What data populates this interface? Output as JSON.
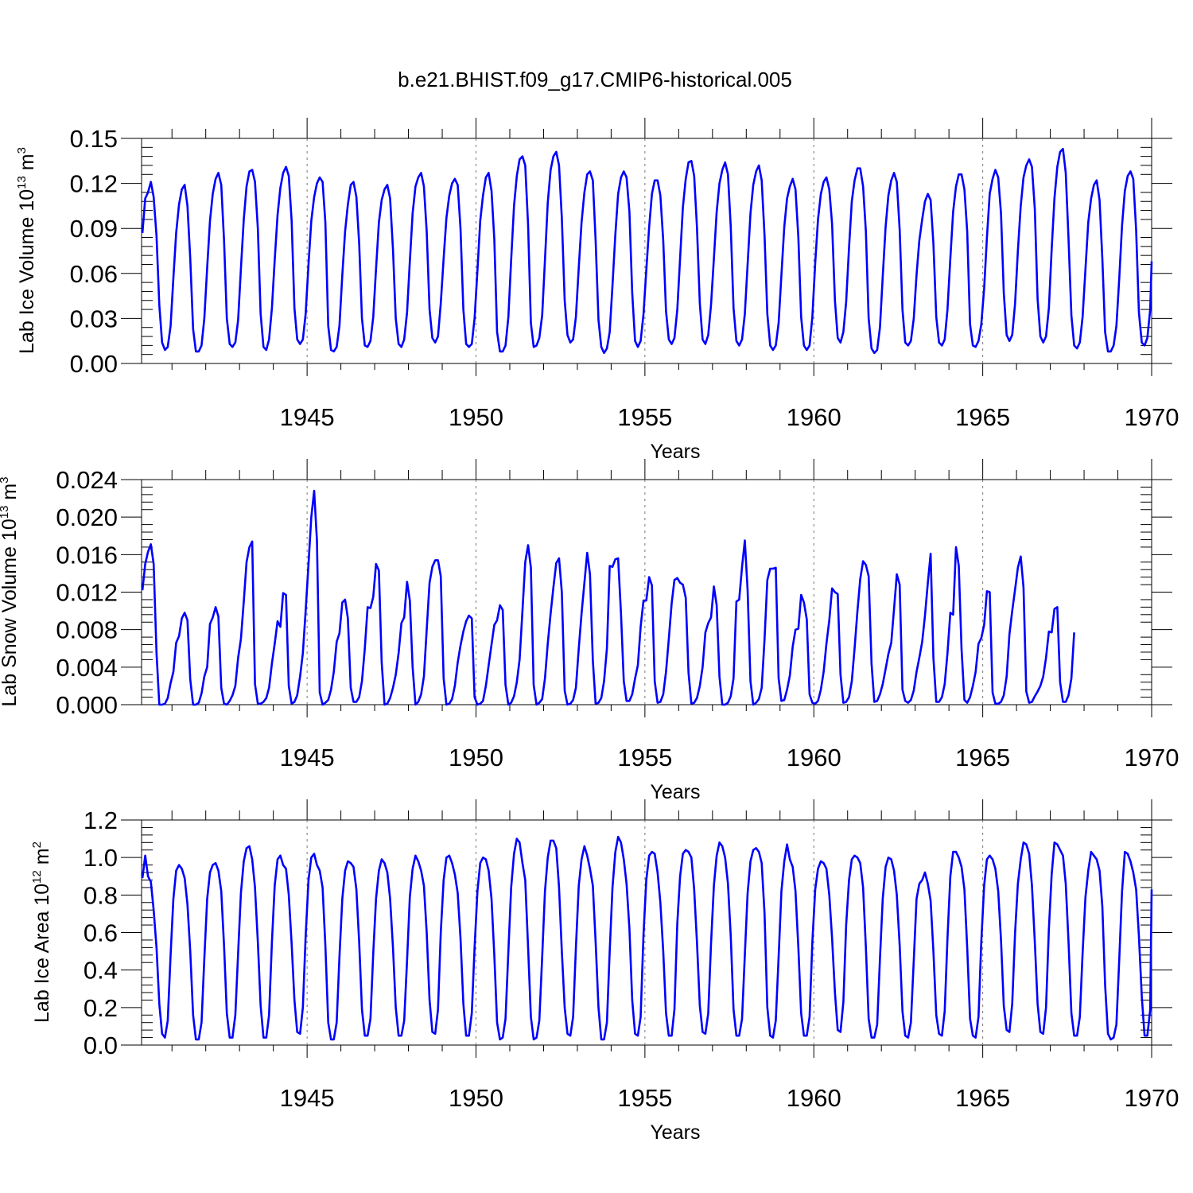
{
  "title": "b.e21.BHIST.f09_g17.CMIP6-historical.005",
  "chart_data": [
    {
      "type": "line",
      "id": "ice-volume",
      "title": "b.e21.BHIST.f09_g17.CMIP6-historical.005",
      "ylabel_main": "Lab Ice Volume 10",
      "ylabel_exp": "13",
      "ylabel_unit": " m",
      "ylabel_unit_exp": "3",
      "xlabel": "Years",
      "xlim": [
        1940.1,
        1970
      ],
      "ylim": [
        0,
        0.15
      ],
      "yticks": [
        0.0,
        0.03,
        0.06,
        0.09,
        0.12,
        0.15
      ],
      "ytick_labels": [
        "0.00",
        "0.03",
        "0.06",
        "0.09",
        "0.12",
        "0.15"
      ],
      "xticks": [
        1945,
        1950,
        1955,
        1960,
        1965,
        1970
      ],
      "xtick_labels": [
        "1945",
        "1950",
        "1955",
        "1960",
        "1965",
        "1970"
      ],
      "line_color": "#0000ff",
      "grid": "dashed vertical at 1945, 1950, 1955, 1960, 1965",
      "x_start": 1940.125,
      "x_step": 0.08333,
      "values": [
        0.087,
        0.11,
        0.114,
        0.121,
        0.111,
        0.085,
        0.039,
        0.014,
        0.009,
        0.011,
        0.025,
        0.057,
        0.087,
        0.106,
        0.116,
        0.119,
        0.105,
        0.07,
        0.023,
        0.008,
        0.008,
        0.012,
        0.03,
        0.064,
        0.095,
        0.113,
        0.123,
        0.127,
        0.119,
        0.082,
        0.03,
        0.013,
        0.011,
        0.014,
        0.029,
        0.063,
        0.096,
        0.118,
        0.128,
        0.129,
        0.121,
        0.09,
        0.033,
        0.011,
        0.009,
        0.016,
        0.037,
        0.069,
        0.099,
        0.117,
        0.127,
        0.131,
        0.125,
        0.095,
        0.037,
        0.016,
        0.013,
        0.016,
        0.033,
        0.066,
        0.095,
        0.111,
        0.12,
        0.124,
        0.121,
        0.094,
        0.025,
        0.009,
        0.008,
        0.011,
        0.025,
        0.059,
        0.088,
        0.106,
        0.119,
        0.121,
        0.111,
        0.08,
        0.03,
        0.012,
        0.011,
        0.015,
        0.031,
        0.063,
        0.094,
        0.109,
        0.116,
        0.119,
        0.11,
        0.076,
        0.03,
        0.013,
        0.011,
        0.016,
        0.034,
        0.068,
        0.1,
        0.118,
        0.124,
        0.127,
        0.118,
        0.088,
        0.036,
        0.017,
        0.014,
        0.018,
        0.04,
        0.07,
        0.097,
        0.112,
        0.12,
        0.123,
        0.119,
        0.09,
        0.036,
        0.013,
        0.011,
        0.013,
        0.03,
        0.062,
        0.095,
        0.112,
        0.124,
        0.127,
        0.115,
        0.083,
        0.021,
        0.008,
        0.008,
        0.012,
        0.031,
        0.069,
        0.105,
        0.125,
        0.136,
        0.138,
        0.132,
        0.092,
        0.027,
        0.011,
        0.012,
        0.017,
        0.032,
        0.069,
        0.107,
        0.129,
        0.138,
        0.141,
        0.132,
        0.097,
        0.042,
        0.019,
        0.014,
        0.016,
        0.031,
        0.064,
        0.094,
        0.114,
        0.126,
        0.128,
        0.122,
        0.082,
        0.029,
        0.011,
        0.007,
        0.01,
        0.021,
        0.052,
        0.086,
        0.113,
        0.124,
        0.128,
        0.124,
        0.101,
        0.047,
        0.015,
        0.011,
        0.015,
        0.033,
        0.062,
        0.091,
        0.113,
        0.122,
        0.122,
        0.112,
        0.082,
        0.035,
        0.016,
        0.013,
        0.017,
        0.036,
        0.07,
        0.104,
        0.123,
        0.134,
        0.135,
        0.125,
        0.091,
        0.04,
        0.016,
        0.013,
        0.019,
        0.039,
        0.07,
        0.101,
        0.12,
        0.129,
        0.134,
        0.126,
        0.091,
        0.037,
        0.015,
        0.012,
        0.016,
        0.033,
        0.066,
        0.1,
        0.119,
        0.128,
        0.132,
        0.122,
        0.085,
        0.033,
        0.012,
        0.009,
        0.012,
        0.027,
        0.059,
        0.091,
        0.11,
        0.118,
        0.123,
        0.116,
        0.084,
        0.031,
        0.012,
        0.009,
        0.012,
        0.031,
        0.067,
        0.096,
        0.113,
        0.121,
        0.124,
        0.116,
        0.093,
        0.042,
        0.017,
        0.014,
        0.021,
        0.041,
        0.077,
        0.108,
        0.122,
        0.13,
        0.13,
        0.118,
        0.088,
        0.03,
        0.01,
        0.007,
        0.009,
        0.024,
        0.058,
        0.091,
        0.112,
        0.122,
        0.127,
        0.121,
        0.089,
        0.036,
        0.014,
        0.012,
        0.015,
        0.03,
        0.059,
        0.082,
        0.096,
        0.108,
        0.113,
        0.109,
        0.08,
        0.031,
        0.014,
        0.012,
        0.016,
        0.036,
        0.07,
        0.101,
        0.118,
        0.126,
        0.126,
        0.116,
        0.088,
        0.026,
        0.012,
        0.011,
        0.015,
        0.026,
        0.05,
        0.084,
        0.113,
        0.123,
        0.129,
        0.124,
        0.1,
        0.047,
        0.019,
        0.015,
        0.019,
        0.04,
        0.075,
        0.105,
        0.124,
        0.132,
        0.136,
        0.131,
        0.103,
        0.043,
        0.018,
        0.014,
        0.018,
        0.037,
        0.076,
        0.11,
        0.131,
        0.141,
        0.143,
        0.127,
        0.083,
        0.032,
        0.012,
        0.01,
        0.014,
        0.031,
        0.063,
        0.094,
        0.11,
        0.119,
        0.122,
        0.109,
        0.07,
        0.021,
        0.008,
        0.008,
        0.012,
        0.025,
        0.056,
        0.092,
        0.115,
        0.125,
        0.128,
        0.123,
        0.089,
        0.034,
        0.014,
        0.012,
        0.017,
        0.036,
        0.068
      ]
    },
    {
      "type": "line",
      "id": "snow-volume",
      "ylabel_main": "Lab Snow Volume 10",
      "ylabel_exp": "13",
      "ylabel_unit": " m",
      "ylabel_unit_exp": "3",
      "xlabel": "Years",
      "xlim": [
        1940.1,
        1970
      ],
      "ylim": [
        0,
        0.024
      ],
      "yticks": [
        0.0,
        0.004,
        0.008,
        0.012,
        0.016,
        0.02,
        0.024
      ],
      "ytick_labels": [
        "0.000",
        "0.004",
        "0.008",
        "0.012",
        "0.016",
        "0.020",
        "0.024"
      ],
      "xticks": [
        1945,
        1950,
        1955,
        1960,
        1965,
        1970
      ],
      "xtick_labels": [
        "1945",
        "1950",
        "1955",
        "1960",
        "1965",
        "1970"
      ],
      "line_color": "#0000ff",
      "grid": "dashed vertical at 1945, 1950, 1955, 1960, 1965",
      "x_start": 1940.125,
      "x_step": 0.08333,
      "values": [
        0.0122,
        0.015,
        0.0163,
        0.0171,
        0.015,
        0.0055,
        0.0,
        0.0,
        0.0001,
        0.0007,
        0.0023,
        0.0035,
        0.0066,
        0.0073,
        0.0092,
        0.0098,
        0.009,
        0.0027,
        0.0,
        0.0,
        0.0002,
        0.0012,
        0.003,
        0.004,
        0.0086,
        0.0093,
        0.0104,
        0.0094,
        0.0018,
        0.0001,
        0.0,
        0.0004,
        0.001,
        0.002,
        0.005,
        0.007,
        0.011,
        0.0152,
        0.0168,
        0.0174,
        0.0022,
        0.0001,
        0.0001,
        0.0003,
        0.0007,
        0.0018,
        0.0044,
        0.0065,
        0.0089,
        0.0083,
        0.0119,
        0.0117,
        0.002,
        0.0001,
        0.0003,
        0.001,
        0.003,
        0.0055,
        0.01,
        0.015,
        0.02,
        0.0228,
        0.0175,
        0.0013,
        0.0,
        0.0002,
        0.0005,
        0.0016,
        0.0035,
        0.0067,
        0.0076,
        0.0109,
        0.0112,
        0.0092,
        0.0018,
        0.0003,
        0.0003,
        0.0008,
        0.0025,
        0.006,
        0.0104,
        0.0103,
        0.0115,
        0.015,
        0.0143,
        0.0045,
        0.0,
        0.0001,
        0.0007,
        0.0018,
        0.0032,
        0.0055,
        0.0087,
        0.0093,
        0.0131,
        0.0111,
        0.004,
        0.0,
        0.0003,
        0.0011,
        0.003,
        0.008,
        0.013,
        0.0147,
        0.0154,
        0.0154,
        0.0137,
        0.0028,
        0.0,
        0.0001,
        0.0006,
        0.002,
        0.0045,
        0.0063,
        0.0078,
        0.0089,
        0.0095,
        0.0092,
        0.0008,
        0.0,
        0.0001,
        0.0004,
        0.002,
        0.0042,
        0.0064,
        0.0085,
        0.009,
        0.0106,
        0.0101,
        0.0021,
        0.0,
        0.0002,
        0.0009,
        0.0024,
        0.0048,
        0.01,
        0.0152,
        0.017,
        0.0146,
        0.0021,
        0.0,
        0.0002,
        0.0006,
        0.0028,
        0.0065,
        0.0097,
        0.0125,
        0.0151,
        0.0156,
        0.012,
        0.0015,
        0.0,
        0.0001,
        0.0005,
        0.0018,
        0.006,
        0.0097,
        0.013,
        0.0162,
        0.0139,
        0.0047,
        0.0001,
        0.0002,
        0.0007,
        0.0025,
        0.006,
        0.0148,
        0.0147,
        0.0155,
        0.0156,
        0.0097,
        0.0025,
        0.0004,
        0.0004,
        0.0011,
        0.0028,
        0.0042,
        0.0083,
        0.0111,
        0.0111,
        0.0136,
        0.0127,
        0.0025,
        0.0002,
        0.0003,
        0.0011,
        0.0035,
        0.007,
        0.0108,
        0.0133,
        0.0135,
        0.013,
        0.0128,
        0.0114,
        0.0034,
        0.0001,
        0.0002,
        0.0007,
        0.002,
        0.004,
        0.0077,
        0.0087,
        0.0093,
        0.0126,
        0.0106,
        0.003,
        0.0,
        0.0,
        0.0002,
        0.0009,
        0.0028,
        0.011,
        0.0112,
        0.0147,
        0.0175,
        0.0122,
        0.0025,
        0.0,
        0.0002,
        0.0006,
        0.0018,
        0.007,
        0.0133,
        0.0145,
        0.0145,
        0.0146,
        0.0028,
        0.0004,
        0.0005,
        0.0016,
        0.0031,
        0.0062,
        0.008,
        0.0081,
        0.0117,
        0.0109,
        0.0091,
        0.0011,
        0.0002,
        0.0001,
        0.0004,
        0.0016,
        0.0035,
        0.0065,
        0.009,
        0.0124,
        0.012,
        0.0118,
        0.0032,
        0.0002,
        0.0003,
        0.0008,
        0.0025,
        0.006,
        0.01,
        0.0134,
        0.0153,
        0.0149,
        0.0137,
        0.0044,
        0.0003,
        0.0004,
        0.0011,
        0.0022,
        0.0038,
        0.0054,
        0.0066,
        0.0102,
        0.0139,
        0.0128,
        0.0016,
        0.0004,
        0.0002,
        0.0005,
        0.0015,
        0.0035,
        0.005,
        0.0067,
        0.0095,
        0.013,
        0.0161,
        0.005,
        0.0003,
        0.0003,
        0.0008,
        0.0022,
        0.0055,
        0.0098,
        0.0096,
        0.0168,
        0.0148,
        0.0059,
        0.0005,
        0.0002,
        0.0008,
        0.002,
        0.0035,
        0.0065,
        0.0071,
        0.0085,
        0.0121,
        0.012,
        0.0013,
        0.0001,
        0.0001,
        0.0003,
        0.001,
        0.003,
        0.0075,
        0.01,
        0.0123,
        0.0146,
        0.0158,
        0.0125,
        0.0014,
        0.0002,
        0.0003,
        0.0009,
        0.0014,
        0.002,
        0.003,
        0.005,
        0.0078,
        0.0077,
        0.0102,
        0.0104,
        0.0024,
        0.0003,
        0.0003,
        0.001,
        0.0028,
        0.0077
      ]
    },
    {
      "type": "line",
      "id": "ice-area",
      "ylabel_main": "Lab Ice Area 10",
      "ylabel_exp": "12",
      "ylabel_unit": " m",
      "ylabel_unit_exp": "2",
      "xlabel": "Years",
      "xlim": [
        1940.1,
        1970
      ],
      "ylim": [
        0,
        1.2
      ],
      "yticks": [
        0.0,
        0.2,
        0.4,
        0.6,
        0.8,
        1.0,
        1.2
      ],
      "ytick_labels": [
        "0.0",
        "0.2",
        "0.4",
        "0.6",
        "0.8",
        "1.0",
        "1.2"
      ],
      "xticks": [
        1945,
        1950,
        1955,
        1960,
        1965,
        1970
      ],
      "xtick_labels": [
        "1945",
        "1950",
        "1955",
        "1960",
        "1965",
        "1970"
      ],
      "line_color": "#0000ff",
      "grid": "dashed vertical at 1945, 1950, 1955, 1960, 1965",
      "x_start": 1940.125,
      "x_step": 0.08333,
      "values": [
        0.89,
        1.01,
        0.9,
        0.87,
        0.72,
        0.52,
        0.22,
        0.06,
        0.04,
        0.13,
        0.48,
        0.78,
        0.93,
        0.96,
        0.94,
        0.89,
        0.75,
        0.5,
        0.16,
        0.03,
        0.03,
        0.12,
        0.46,
        0.78,
        0.92,
        0.96,
        0.97,
        0.93,
        0.82,
        0.53,
        0.17,
        0.04,
        0.04,
        0.16,
        0.49,
        0.81,
        0.98,
        1.05,
        1.06,
        0.99,
        0.84,
        0.55,
        0.21,
        0.04,
        0.04,
        0.16,
        0.55,
        0.85,
        0.99,
        1.01,
        0.96,
        0.94,
        0.8,
        0.54,
        0.24,
        0.07,
        0.06,
        0.2,
        0.58,
        0.88,
        1.0,
        1.02,
        0.96,
        0.93,
        0.84,
        0.53,
        0.12,
        0.03,
        0.03,
        0.12,
        0.47,
        0.78,
        0.93,
        0.98,
        0.97,
        0.95,
        0.83,
        0.55,
        0.19,
        0.05,
        0.05,
        0.14,
        0.49,
        0.78,
        0.93,
        0.99,
        0.97,
        0.92,
        0.78,
        0.52,
        0.2,
        0.05,
        0.05,
        0.13,
        0.45,
        0.79,
        0.94,
        1.01,
        0.98,
        0.93,
        0.85,
        0.6,
        0.24,
        0.07,
        0.06,
        0.19,
        0.6,
        0.88,
        1.0,
        1.01,
        0.97,
        0.91,
        0.81,
        0.57,
        0.22,
        0.05,
        0.05,
        0.17,
        0.52,
        0.82,
        0.97,
        1.0,
        0.99,
        0.93,
        0.78,
        0.48,
        0.12,
        0.03,
        0.04,
        0.14,
        0.5,
        0.84,
        1.02,
        1.1,
        1.08,
        0.97,
        0.88,
        0.52,
        0.15,
        0.03,
        0.04,
        0.13,
        0.47,
        0.82,
        1.0,
        1.09,
        1.09,
        1.05,
        0.84,
        0.5,
        0.2,
        0.06,
        0.05,
        0.15,
        0.52,
        0.85,
        0.99,
        1.06,
        1.01,
        0.94,
        0.85,
        0.55,
        0.2,
        0.03,
        0.03,
        0.12,
        0.5,
        0.84,
        1.03,
        1.11,
        1.08,
        0.99,
        0.86,
        0.62,
        0.24,
        0.06,
        0.05,
        0.15,
        0.59,
        0.88,
        1.01,
        1.03,
        1.02,
        0.92,
        0.76,
        0.5,
        0.17,
        0.05,
        0.05,
        0.19,
        0.65,
        0.9,
        1.02,
        1.04,
        1.03,
        1.0,
        0.83,
        0.55,
        0.21,
        0.07,
        0.06,
        0.17,
        0.54,
        0.85,
        1.01,
        1.08,
        1.06,
        1.0,
        0.86,
        0.58,
        0.19,
        0.05,
        0.05,
        0.14,
        0.48,
        0.81,
        0.98,
        1.04,
        1.05,
        1.03,
        0.97,
        0.7,
        0.2,
        0.05,
        0.04,
        0.13,
        0.47,
        0.82,
        0.98,
        1.07,
        0.99,
        0.95,
        0.82,
        0.52,
        0.17,
        0.05,
        0.05,
        0.15,
        0.55,
        0.83,
        0.94,
        0.98,
        0.97,
        0.94,
        0.8,
        0.57,
        0.28,
        0.08,
        0.07,
        0.23,
        0.64,
        0.88,
        0.99,
        1.01,
        1.0,
        0.97,
        0.84,
        0.52,
        0.14,
        0.04,
        0.04,
        0.11,
        0.46,
        0.78,
        0.95,
        1.0,
        0.99,
        0.93,
        0.8,
        0.53,
        0.18,
        0.05,
        0.04,
        0.12,
        0.45,
        0.78,
        0.86,
        0.88,
        0.92,
        0.86,
        0.77,
        0.5,
        0.16,
        0.06,
        0.05,
        0.18,
        0.57,
        0.9,
        1.03,
        1.03,
        1.0,
        0.95,
        0.83,
        0.52,
        0.14,
        0.05,
        0.04,
        0.15,
        0.55,
        0.85,
        0.99,
        1.01,
        0.99,
        0.94,
        0.82,
        0.56,
        0.21,
        0.08,
        0.07,
        0.22,
        0.6,
        0.86,
        0.99,
        1.08,
        1.07,
        1.02,
        0.85,
        0.55,
        0.22,
        0.07,
        0.06,
        0.2,
        0.62,
        0.91,
        1.08,
        1.07,
        1.04,
        1.01,
        0.86,
        0.55,
        0.17,
        0.05,
        0.05,
        0.15,
        0.49,
        0.79,
        0.93,
        1.03,
        1.01,
        0.99,
        0.93,
        0.74,
        0.32,
        0.06,
        0.03,
        0.04,
        0.11,
        0.45,
        0.82,
        1.03,
        1.02,
        0.98,
        0.92,
        0.83,
        0.58,
        0.26,
        0.05,
        0.05,
        0.19,
        0.83
      ]
    }
  ]
}
